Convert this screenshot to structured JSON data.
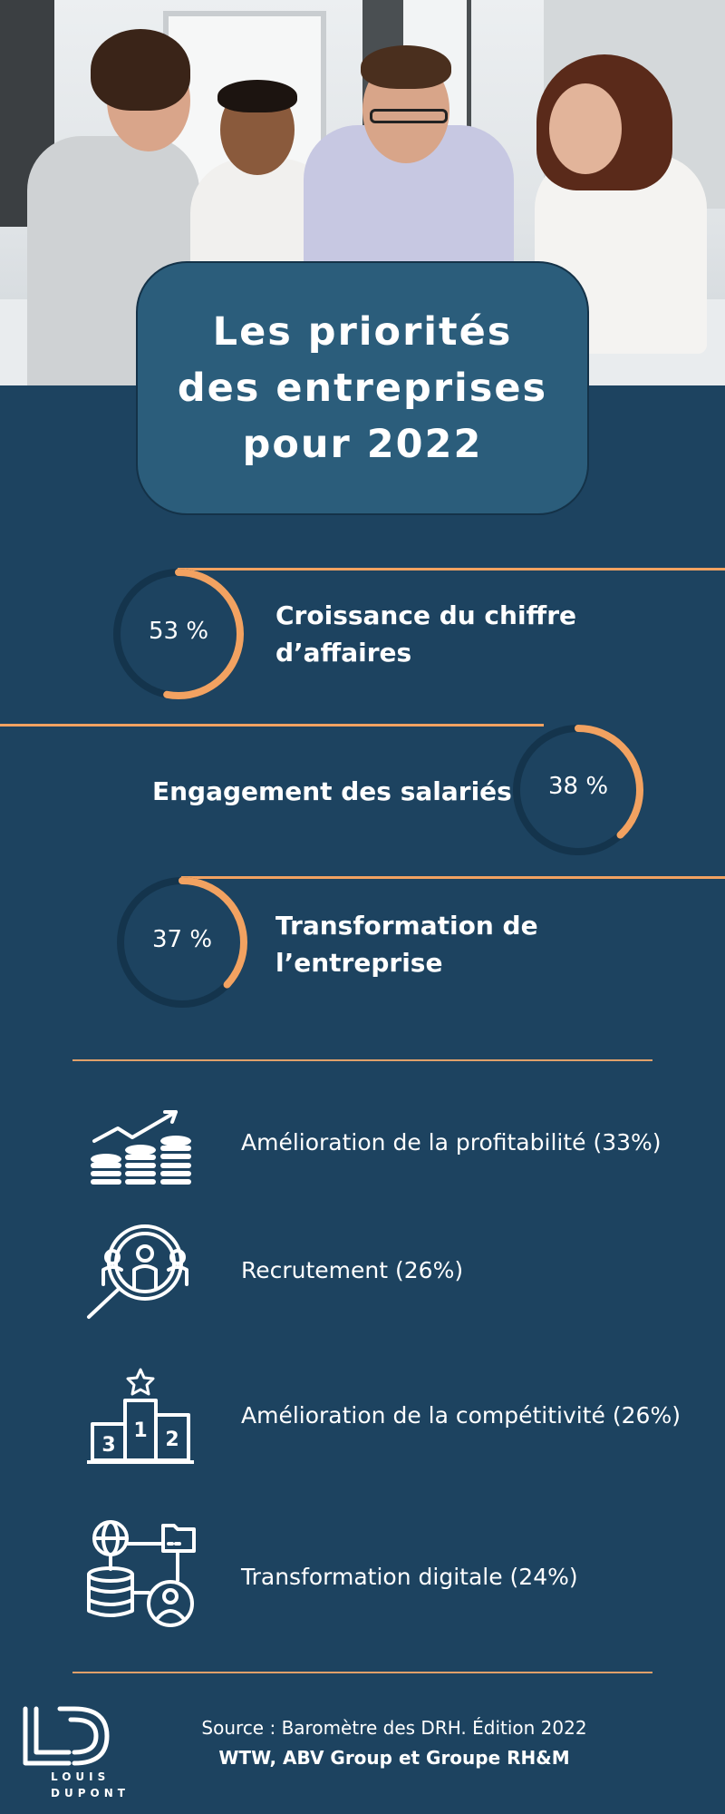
{
  "title": {
    "line1": "Les priorités",
    "line2": "des entreprises",
    "line3": "pour 2022"
  },
  "top_priorities": [
    {
      "percent_label": "53 %",
      "value": 53,
      "label_line1": "Croissance du chiffre",
      "label_line2": "d’affaires"
    },
    {
      "percent_label": "38 %",
      "value": 38,
      "label_line1": "Engagement des salariés",
      "label_line2": ""
    },
    {
      "percent_label": "37 %",
      "value": 37,
      "label_line1": "Transformation de",
      "label_line2": "l’entreprise"
    }
  ],
  "other_priorities": [
    {
      "icon": "coins-growth-icon",
      "label": "Amélioration de la profitabilité (33%)"
    },
    {
      "icon": "recruitment-magnifier-icon",
      "label": "Recrutement (26%)"
    },
    {
      "icon": "podium-star-icon",
      "label": "Amélioration de la compétitivité (26%)"
    },
    {
      "icon": "digital-network-icon",
      "label": "Transformation digitale (24%)"
    }
  ],
  "source": {
    "line1": "Source : Baromètre des DRH. Édition 2022",
    "line2": "WTW, ABV Group et Groupe RH&M"
  },
  "logo": {
    "word1": "LOUIS",
    "word2": "DUPONT"
  },
  "colors": {
    "background": "#1d4360",
    "title_card": "#2b5d7b",
    "accent": "#f2a261",
    "ring_track": "#14344c"
  }
}
